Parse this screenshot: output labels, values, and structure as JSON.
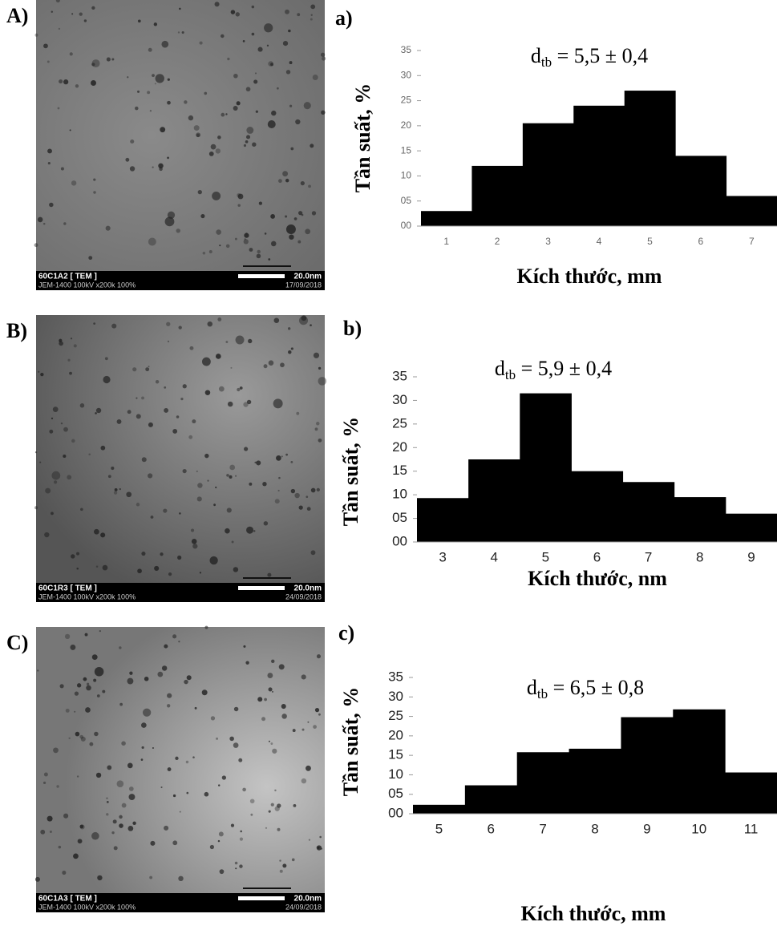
{
  "images": [
    {
      "letter": "A)",
      "sample": "60C1A2 [ TEM ]",
      "instrument": "JEM-1400 100kV x200k 100%",
      "scale": "20.0nm",
      "date": "17/09/2018"
    },
    {
      "letter": "B)",
      "sample": "60C1R3 [ TEM ]",
      "instrument": "JEM-1400 100kV x200k 100%",
      "scale": "20.0nm",
      "date": "24/09/2018"
    },
    {
      "letter": "C)",
      "sample": "60C1A3 [ TEM ]",
      "instrument": "JEM-1400 100kV x200k 100%",
      "scale": "20.0nm",
      "date": "24/09/2018"
    }
  ],
  "chart_data": [
    {
      "type": "bar",
      "panel": "a)",
      "annotation": {
        "base": "d",
        "sub": "tb",
        "text": " = 5,5 ± 0,4"
      },
      "x_label": "Kích thước, mm",
      "y_label": "Tần suất, %",
      "categories": [
        "1",
        "2",
        "3",
        "4",
        "5",
        "6",
        "7"
      ],
      "values": [
        3,
        12,
        20.5,
        24,
        27,
        14,
        6
      ],
      "color": "#000000",
      "ylim": [
        0,
        35
      ],
      "yticks": [
        {
          "value": 0,
          "label": "00"
        },
        {
          "value": 5,
          "label": "05"
        },
        10,
        15,
        20,
        25,
        30,
        35
      ]
    },
    {
      "type": "bar",
      "panel": "b)",
      "annotation": {
        "base": "d",
        "sub": "tb",
        "text": " = 5,9 ± 0,4"
      },
      "x_label": "Kích thước, nm",
      "y_label": "Tần suất, %",
      "categories": [
        "3",
        "4",
        "5",
        "6",
        "7",
        "8",
        "9"
      ],
      "values": [
        9.3,
        17.5,
        31.5,
        15,
        12.7,
        9.5,
        6
      ],
      "color": "#000000",
      "ylim": [
        0,
        35
      ],
      "yticks": [
        {
          "value": 0,
          "label": "00"
        },
        {
          "value": 5,
          "label": "05"
        },
        10,
        15,
        20,
        25,
        30,
        35
      ]
    },
    {
      "type": "bar",
      "panel": "c)",
      "annotation": {
        "base": "d",
        "sub": "tb",
        "text": " = 6,5 ± 0,8"
      },
      "x_label": "Kích thước, mm",
      "y_label": "Tần suất, %",
      "categories": [
        "5",
        "6",
        "7",
        "8",
        "9",
        "10",
        "11"
      ],
      "values": [
        2.3,
        7.3,
        15.8,
        16.7,
        24.8,
        26.8,
        10.6
      ],
      "color": "#000000",
      "ylim": [
        0,
        35
      ],
      "yticks": [
        {
          "value": 0,
          "label": "00"
        },
        {
          "value": 5,
          "label": "05"
        },
        10,
        15,
        20,
        25,
        30,
        35
      ]
    }
  ]
}
